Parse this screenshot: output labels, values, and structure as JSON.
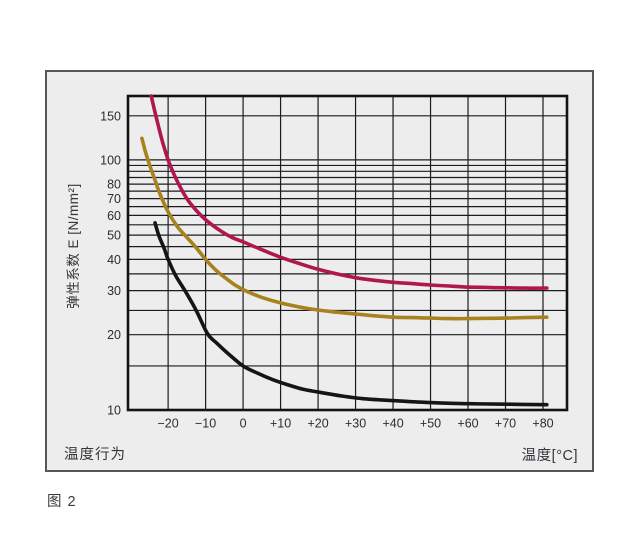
{
  "figure": {
    "caption": "图 2",
    "panel_bottom_left": "温度行为",
    "panel_bottom_right": "温度[°C]"
  },
  "colors": {
    "page_background": "#FFFFFF",
    "panel_background": "#EDEDEE",
    "panel_border": "#54565A",
    "grid_line": "#1B1C1E",
    "plot_border": "#121314",
    "tick_text": "#2B2D30",
    "series_red": "#B1174F",
    "series_gold": "#A8821F",
    "series_black": "#141516"
  },
  "chart_data": {
    "type": "line",
    "title": "温度行为",
    "xlabel": "温度[°C]",
    "ylabel": "弹性系数 E [N/mm²]",
    "x_axis": {
      "min": -30.7,
      "max": 86.4,
      "gridlines": [
        -20,
        -10,
        0,
        10,
        20,
        30,
        40,
        50,
        60,
        70,
        80
      ],
      "tick_values": [
        -20,
        -10,
        0,
        10,
        20,
        30,
        40,
        50,
        60,
        70,
        80
      ],
      "tick_labels": [
        "−20",
        "−10",
        "0",
        "+10",
        "+20",
        "+30",
        "+40",
        "+50",
        "+60",
        "+70",
        "+80"
      ],
      "grid": true
    },
    "y_axis": {
      "scale": "log",
      "min": 10,
      "max": 180,
      "gridlines": [
        10,
        15,
        20,
        25,
        30,
        35,
        40,
        45,
        50,
        55,
        60,
        65,
        70,
        75,
        80,
        85,
        90,
        95,
        100,
        150
      ],
      "tick_values": [
        150,
        100,
        80,
        70,
        60,
        50,
        40,
        30,
        20,
        10
      ],
      "tick_labels": [
        "150",
        "100",
        "80",
        "70",
        "60",
        "50",
        "40",
        "30",
        "20",
        "10"
      ],
      "grid": true
    },
    "legend": "none",
    "series": [
      {
        "name": "series-red",
        "color": "#B1174F",
        "points": [
          [
            -24.5,
            180
          ],
          [
            -23.5,
            155
          ],
          [
            -22.5,
            135
          ],
          [
            -21.5,
            118
          ],
          [
            -20,
            100
          ],
          [
            -18.5,
            88
          ],
          [
            -17,
            79
          ],
          [
            -15,
            70
          ],
          [
            -13,
            64
          ],
          [
            -11,
            59.5
          ],
          [
            -9,
            56
          ],
          [
            -6,
            52
          ],
          [
            -3,
            49
          ],
          [
            0,
            47
          ],
          [
            3,
            45
          ],
          [
            7,
            42.5
          ],
          [
            11,
            40.3
          ],
          [
            15,
            38.5
          ],
          [
            20,
            36.5
          ],
          [
            25,
            35
          ],
          [
            30,
            33.8
          ],
          [
            35,
            33
          ],
          [
            40,
            32.4
          ],
          [
            45,
            32
          ],
          [
            50,
            31.6
          ],
          [
            55,
            31.3
          ],
          [
            60,
            31
          ],
          [
            65,
            30.9
          ],
          [
            70,
            30.8
          ],
          [
            75,
            30.7
          ],
          [
            81,
            30.7
          ]
        ]
      },
      {
        "name": "series-gold",
        "color": "#A8821F",
        "points": [
          [
            -27,
            122
          ],
          [
            -26,
            107
          ],
          [
            -25,
            96
          ],
          [
            -23.5,
            83
          ],
          [
            -22,
            72
          ],
          [
            -20,
            62
          ],
          [
            -17.5,
            54
          ],
          [
            -15,
            49
          ],
          [
            -12.5,
            44.5
          ],
          [
            -10,
            40
          ],
          [
            -7.5,
            36.5
          ],
          [
            -5,
            34
          ],
          [
            -2,
            31.5
          ],
          [
            1,
            29.8
          ],
          [
            5,
            28.2
          ],
          [
            10,
            26.8
          ],
          [
            15,
            25.8
          ],
          [
            20,
            25.1
          ],
          [
            25,
            24.6
          ],
          [
            30,
            24.2
          ],
          [
            35,
            23.8
          ],
          [
            40,
            23.5
          ],
          [
            45,
            23.4
          ],
          [
            50,
            23.3
          ],
          [
            55,
            23.2
          ],
          [
            60,
            23.2
          ],
          [
            65,
            23.25
          ],
          [
            70,
            23.3
          ],
          [
            75,
            23.4
          ],
          [
            81,
            23.5
          ]
        ]
      },
      {
        "name": "series-black",
        "color": "#141516",
        "points": [
          [
            -23.5,
            56
          ],
          [
            -22.5,
            50
          ],
          [
            -21,
            44
          ],
          [
            -20,
            40
          ],
          [
            -18,
            34.5
          ],
          [
            -15.5,
            30
          ],
          [
            -12.5,
            25
          ],
          [
            -9.5,
            20.2
          ],
          [
            -7,
            18.5
          ],
          [
            -4,
            16.8
          ],
          [
            0,
            15
          ],
          [
            4,
            14
          ],
          [
            8,
            13.2
          ],
          [
            12,
            12.6
          ],
          [
            16,
            12.1
          ],
          [
            20,
            11.8
          ],
          [
            26,
            11.4
          ],
          [
            32,
            11.1
          ],
          [
            40,
            10.9
          ],
          [
            50,
            10.7
          ],
          [
            60,
            10.6
          ],
          [
            70,
            10.55
          ],
          [
            81,
            10.5
          ]
        ]
      }
    ]
  }
}
